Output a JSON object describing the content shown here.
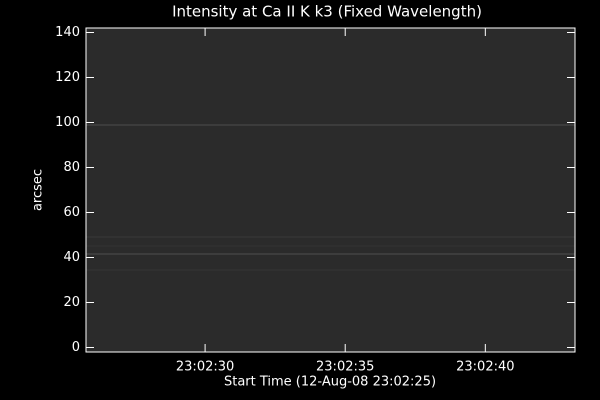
{
  "chart_data": {
    "type": "image",
    "title": "Intensity at Ca II K k3 (Fixed Wavelength)",
    "x_label": "Start Time (12-Aug-08 23:02:25)",
    "y_label": "arcsec",
    "xlim": [
      0.75,
      18.2
    ],
    "xticks": [
      {
        "value": 5,
        "label": "23:02:30"
      },
      {
        "value": 10,
        "label": "23:02:35"
      },
      {
        "value": 15,
        "label": "23:02:40"
      }
    ],
    "ylim": [
      -2,
      142
    ],
    "yticks": [
      0,
      20,
      40,
      60,
      80,
      100,
      120,
      140
    ]
  }
}
